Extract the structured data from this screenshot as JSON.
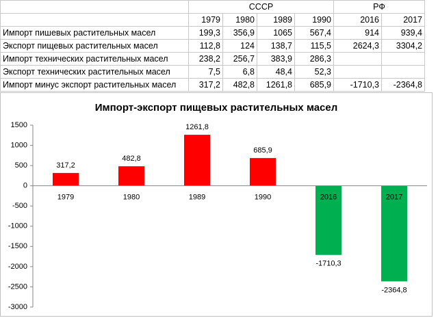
{
  "table": {
    "groups": [
      "СССР",
      "РФ"
    ],
    "years": [
      "1979",
      "1980",
      "1989",
      "1990",
      "2016",
      "2017"
    ],
    "rows": [
      [
        "Импорт пишевых растительных масел",
        "199,3",
        "356,9",
        "1065",
        "567,4",
        "914",
        "939,4"
      ],
      [
        "Экспорт пищевых растительных масел",
        "112,8",
        "124",
        "138,7",
        "115,5",
        "2624,3",
        "3304,2"
      ],
      [
        "Импорт технических растительных масел",
        "238,2",
        "256,7",
        "383,9",
        "286,3"
      ],
      [
        "Экспорт технических растительных масел",
        "7,5",
        "6,8",
        "48,4",
        "52,3"
      ],
      [
        "Импорт минус экспорт растительных масел",
        "317,2",
        "482,8",
        "1261,8",
        "685,9",
        "-1710,3",
        "-2364,8"
      ]
    ]
  },
  "chart_data": {
    "type": "bar",
    "title": "Импорт-экспорт пищевых растительных масел",
    "categories": [
      "1979",
      "1980",
      "1989",
      "1990",
      "2016",
      "2017"
    ],
    "values": [
      317.2,
      482.8,
      1261.8,
      685.9,
      -1710.3,
      -2364.8
    ],
    "value_labels": [
      "317,2",
      "482,8",
      "1261,8",
      "685,9",
      "-1710,3",
      "-2364,8"
    ],
    "colors": [
      "#ff0000",
      "#ff0000",
      "#ff0000",
      "#ff0000",
      "#00b050",
      "#00b050"
    ],
    "ylim": [
      -3000,
      1500
    ],
    "yticks": [
      -3000,
      -2500,
      -2000,
      -1500,
      -1000,
      -500,
      0,
      500,
      1000,
      1500
    ],
    "grid": false
  }
}
